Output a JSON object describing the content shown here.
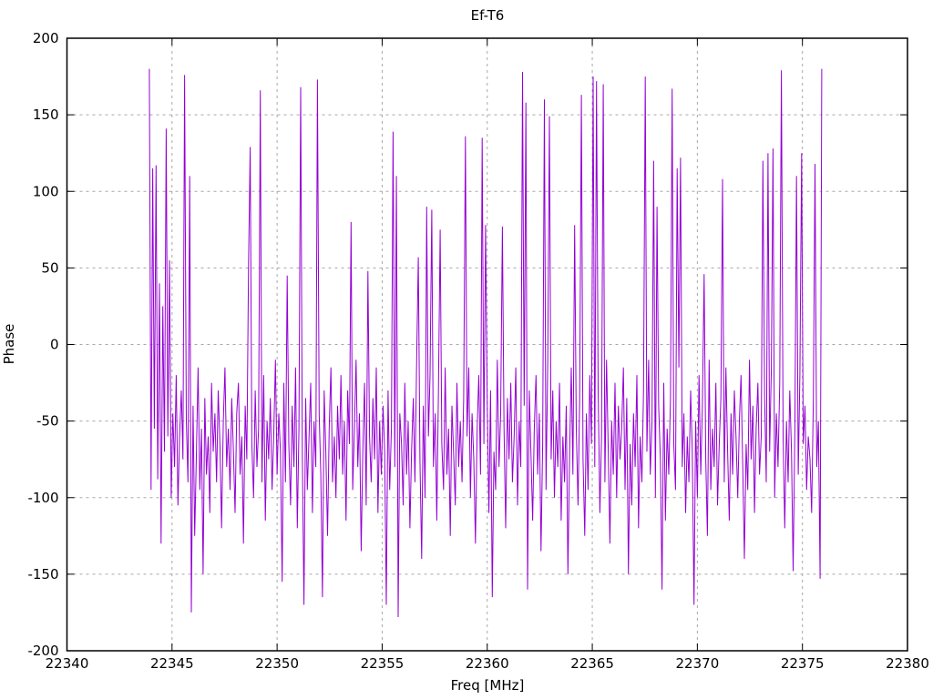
{
  "chart_data": {
    "type": "line",
    "title": "Ef-T6",
    "xlabel": "Freq [MHz]",
    "ylabel": "Phase",
    "xlim": [
      22340,
      22380
    ],
    "ylim": [
      -200,
      200
    ],
    "x_ticks": [
      22340,
      22345,
      22350,
      22355,
      22360,
      22365,
      22370,
      22375,
      22380
    ],
    "y_ticks": [
      -200,
      -150,
      -100,
      -50,
      0,
      50,
      100,
      150,
      200
    ],
    "grid": true,
    "legend_position": "none",
    "line_color": "#9400d3",
    "border_color": "#000000",
    "grid_color": "#a8a8a8",
    "series": [
      {
        "name": "phase",
        "x_start": 22343.92,
        "x_step": 0.08,
        "values": [
          180,
          -95,
          115,
          -55,
          117,
          -88,
          40,
          -130,
          25,
          -70,
          141,
          -60,
          55,
          -100,
          -45,
          -80,
          -20,
          -105,
          -60,
          -30,
          -75,
          176,
          -50,
          -90,
          110,
          -175,
          -40,
          -125,
          -70,
          -15,
          -95,
          -55,
          -150,
          -35,
          -85,
          -60,
          -110,
          -25,
          -70,
          -45,
          -90,
          -30,
          -65,
          -120,
          -50,
          -15,
          -80,
          -55,
          -95,
          -35,
          -70,
          -110,
          -45,
          -25,
          -85,
          -60,
          -130,
          -40,
          -75,
          53,
          129,
          -65,
          -100,
          -30,
          -80,
          -55,
          166,
          -90,
          -20,
          -115,
          -50,
          -75,
          -35,
          -95,
          -60,
          -10,
          -85,
          -45,
          -70,
          -155,
          -25,
          -90,
          45,
          -65,
          -105,
          -40,
          -80,
          -15,
          -120,
          -55,
          168,
          -70,
          -170,
          -35,
          -95,
          -60,
          -25,
          -110,
          -50,
          -80,
          173,
          -45,
          -85,
          -165,
          -30,
          -70,
          -125,
          -55,
          -15,
          -90,
          -60,
          -100,
          -40,
          -75,
          -20,
          -85,
          -50,
          -115,
          -30,
          -65,
          80,
          -95,
          -55,
          -10,
          -80,
          -45,
          -135,
          -70,
          -25,
          -105,
          48,
          -60,
          -90,
          -35,
          -75,
          -15,
          -110,
          -50,
          -85,
          -40,
          -70,
          -170,
          -30,
          -95,
          -55,
          139,
          -80,
          110,
          -178,
          -45,
          -65,
          -105,
          -25,
          -85,
          -50,
          -120,
          -70,
          -35,
          -90,
          -10,
          57,
          -75,
          -140,
          -40,
          -100,
          90,
          -60,
          -20,
          88,
          -80,
          -45,
          -115,
          -30,
          75,
          -65,
          -95,
          -15,
          -85,
          -55,
          -125,
          -40,
          -70,
          -105,
          -25,
          -80,
          -50,
          -90,
          -35,
          136,
          -60,
          -15,
          -100,
          -45,
          -75,
          -130,
          -55,
          -20,
          -85,
          135,
          -65,
          78,
          -40,
          -110,
          -30,
          -165,
          -70,
          -95,
          -10,
          -80,
          -45,
          77,
          -55,
          -120,
          -35,
          -75,
          -25,
          -90,
          -60,
          -15,
          -105,
          -50,
          -80,
          178,
          -40,
          158,
          -160,
          -30,
          -70,
          -115,
          -55,
          -20,
          -85,
          -45,
          -135,
          -65,
          160,
          -95,
          -10,
          149,
          -75,
          -30,
          -100,
          -50,
          -80,
          -25,
          -115,
          -60,
          -90,
          -40,
          -150,
          -70,
          -15,
          -85,
          78,
          -55,
          -105,
          -35,
          163,
          -75,
          -125,
          -45,
          -95,
          -20,
          -65,
          175,
          -80,
          172,
          -30,
          -110,
          -60,
          170,
          -90,
          -10,
          -70,
          -130,
          -50,
          -85,
          -25,
          -100,
          -40,
          -75,
          -55,
          -15,
          -95,
          -35,
          -150,
          -65,
          -105,
          -45,
          -80,
          -20,
          -120,
          -60,
          -90,
          -30,
          175,
          -70,
          -10,
          -85,
          -50,
          120,
          -100,
          90,
          -40,
          -75,
          -160,
          -25,
          -115,
          -55,
          -85,
          -35,
          167,
          -65,
          -95,
          115,
          -15,
          122,
          -80,
          -45,
          -110,
          -60,
          -90,
          -30,
          -70,
          -170,
          -50,
          -100,
          -20,
          -85,
          -40,
          46,
          -75,
          -125,
          -10,
          -95,
          -55,
          -80,
          -25,
          -105,
          -65,
          -35,
          108,
          -90,
          -15,
          -70,
          -115,
          -45,
          -85,
          -30,
          -60,
          -100,
          -50,
          -20,
          -80,
          -140,
          -65,
          -95,
          -10,
          -75,
          -40,
          -110,
          -55,
          -25,
          -85,
          -60,
          120,
          -35,
          -90,
          125,
          -70,
          -15,
          128,
          -100,
          -45,
          -80,
          -25,
          179,
          -60,
          -120,
          -50,
          -90,
          -30,
          -70,
          -148,
          -55,
          110,
          -85,
          -20,
          125,
          -65,
          -40,
          -95,
          -60,
          -75,
          -110,
          -35,
          118,
          -80,
          -50,
          -153,
          180
        ]
      }
    ]
  }
}
